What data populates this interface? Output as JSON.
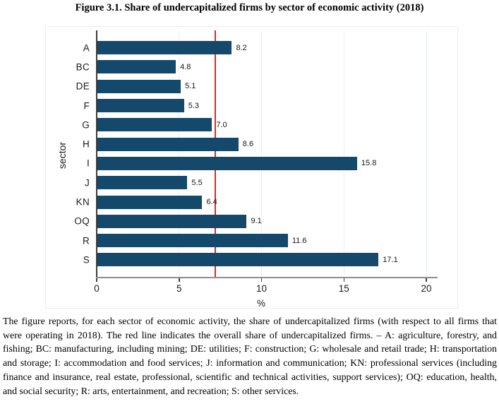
{
  "title": "Figure 3.1. Share of undercapitalized firms by sector of economic activity (2018)",
  "chart_data": {
    "type": "bar",
    "orientation": "horizontal",
    "title": "Figure 3.1. Share of undercapitalized firms by sector of economic activity (2018)",
    "categories": [
      "A",
      "BC",
      "DE",
      "F",
      "G",
      "H",
      "I",
      "J",
      "KN",
      "OQ",
      "R",
      "S"
    ],
    "values": [
      8.2,
      4.8,
      5.1,
      5.3,
      7.0,
      8.6,
      15.8,
      5.5,
      6.4,
      9.1,
      11.6,
      17.1
    ],
    "value_labels": [
      "8.2",
      "4.8",
      "5.1",
      "5.3",
      "7.0",
      "8.6",
      "15.8",
      "5.5",
      "6.4",
      "9.1",
      "11.6",
      "17.1"
    ],
    "xlabel": "%",
    "ylabel": "sector",
    "xlim": [
      0,
      20.6
    ],
    "xticks": [
      0,
      5,
      10,
      15,
      20
    ],
    "grid": true,
    "gridline_color": "#e8eff6",
    "bar_color": "#14496b",
    "reference_line": {
      "value": 7.2,
      "color": "#e52621",
      "meaning": "overall share of undercapitalized firms"
    }
  },
  "caption": "The figure reports, for each sector of economic activity, the share of undercapitalized firms (with respect to all firms that were operating in 2018). The red line indicates the overall share of undercapitalized firms. – A: agriculture, forestry, and fishing; BC: manufacturing, including mining; DE: utilities; F: construction; G: wholesale and retail trade; H: transportation and storage; I: accommodation and food services; J: information and communication; KN: professional services (including finance and insurance, real estate, professional, scientific and technical activities, support services); OQ: education, health, and social security; R: arts, entertainment, and recreation; S: other services."
}
